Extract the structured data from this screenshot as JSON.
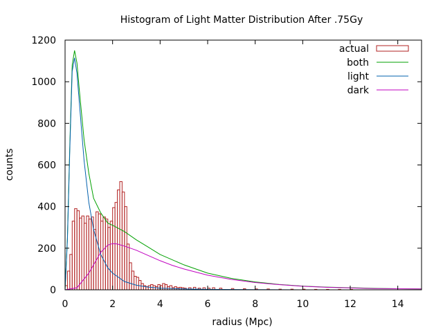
{
  "chart_data": {
    "type": "bar",
    "title": "Histogram of Light Matter Distribution After .75Gy",
    "xlabel": "radius (Mpc)",
    "ylabel": "counts",
    "xlim": [
      0,
      15
    ],
    "ylim": [
      0,
      1200
    ],
    "xticks": [
      0,
      2,
      4,
      6,
      8,
      10,
      12,
      14
    ],
    "yticks": [
      0,
      200,
      400,
      600,
      800,
      1000,
      1200
    ],
    "grid": false,
    "legend": "top-right",
    "legend_entries": [
      "actual",
      "both",
      "light",
      "dark"
    ],
    "histogram": {
      "name": "actual",
      "color": "#b22222",
      "bin_width": 0.1,
      "bin_starts": [
        0.0,
        0.1,
        0.2,
        0.3,
        0.4,
        0.5,
        0.6,
        0.7,
        0.8,
        0.9,
        1.0,
        1.1,
        1.2,
        1.3,
        1.4,
        1.5,
        1.6,
        1.7,
        1.8,
        1.9,
        2.0,
        2.1,
        2.2,
        2.3,
        2.4,
        2.5,
        2.6,
        2.7,
        2.8,
        2.9,
        3.0,
        3.1,
        3.2,
        3.3,
        3.4,
        3.5,
        3.6,
        3.7,
        3.8,
        3.9,
        4.0,
        4.1,
        4.2,
        4.3,
        4.4,
        4.5,
        4.6,
        4.7,
        4.8,
        4.9,
        5.0,
        5.2,
        5.4,
        5.6,
        5.8,
        6.0,
        6.2,
        6.5,
        7.0,
        7.5,
        8.0,
        8.5,
        9.0,
        9.5,
        10.0,
        10.5,
        11.0,
        11.5,
        12.0
      ],
      "counts": [
        20,
        90,
        170,
        330,
        390,
        380,
        345,
        355,
        320,
        355,
        340,
        350,
        290,
        375,
        365,
        330,
        350,
        340,
        300,
        330,
        395,
        420,
        480,
        520,
        470,
        400,
        220,
        130,
        90,
        65,
        60,
        45,
        30,
        20,
        15,
        20,
        25,
        20,
        15,
        25,
        20,
        30,
        25,
        15,
        20,
        10,
        15,
        10,
        12,
        10,
        8,
        10,
        12,
        8,
        10,
        8,
        10,
        8,
        6,
        5,
        4,
        4,
        3,
        3,
        3,
        2,
        2,
        2,
        2
      ]
    },
    "series": [
      {
        "name": "both",
        "color": "#00a000",
        "x": [
          0,
          0.1,
          0.2,
          0.3,
          0.4,
          0.5,
          0.6,
          0.8,
          1.0,
          1.2,
          1.5,
          1.8,
          2.0,
          2.5,
          3.0,
          3.5,
          4.0,
          5.0,
          6.0,
          7.0,
          8.0,
          9.0,
          10,
          11,
          12,
          13,
          14,
          15
        ],
        "y": [
          0,
          250,
          700,
          1080,
          1150,
          1090,
          960,
          720,
          560,
          440,
          370,
          320,
          310,
          280,
          240,
          205,
          170,
          120,
          80,
          55,
          38,
          26,
          18,
          13,
          10,
          7,
          5,
          4
        ]
      },
      {
        "name": "light",
        "color": "#0060ad",
        "x": [
          0,
          0.1,
          0.2,
          0.3,
          0.4,
          0.5,
          0.6,
          0.8,
          1.0,
          1.2,
          1.5,
          1.8,
          2.0,
          2.5,
          3.0,
          3.5,
          4.0,
          5.0,
          6.0,
          8.0,
          10,
          15
        ],
        "y": [
          0,
          240,
          680,
          1050,
          1115,
          1040,
          900,
          620,
          420,
          290,
          170,
          105,
          80,
          40,
          22,
          13,
          8,
          4,
          2,
          1,
          0,
          0
        ]
      },
      {
        "name": "dark",
        "color": "#c000c0",
        "x": [
          0,
          0.5,
          1.0,
          1.5,
          1.8,
          2.0,
          2.2,
          2.5,
          3.0,
          3.5,
          4.0,
          4.5,
          5.0,
          6.0,
          7.0,
          8.0,
          9.0,
          10,
          11,
          12,
          13,
          14,
          15
        ],
        "y": [
          0,
          10,
          80,
          180,
          215,
          222,
          220,
          210,
          190,
          165,
          140,
          118,
          100,
          70,
          50,
          35,
          25,
          17,
          12,
          9,
          6,
          5,
          4
        ]
      }
    ]
  }
}
